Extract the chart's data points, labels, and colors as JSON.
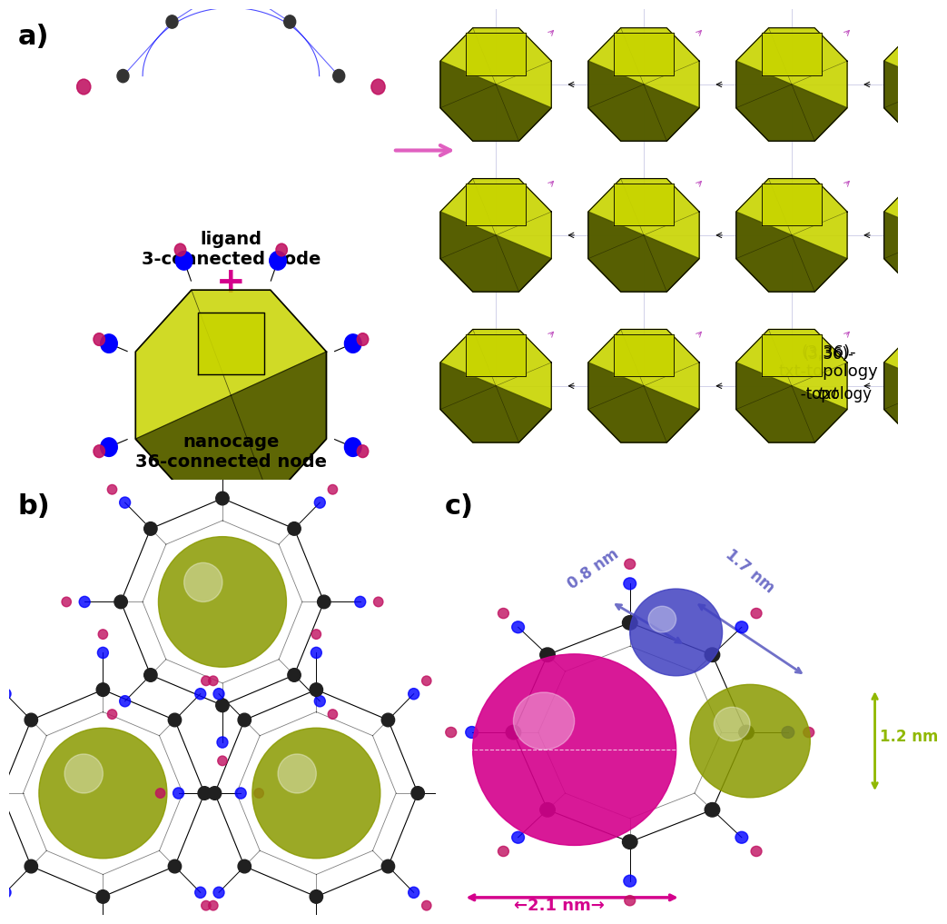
{
  "panel_a_label": "a)",
  "panel_b_label": "b)",
  "panel_c_label": "c)",
  "text_ligand": "ligand\n3-connected node",
  "text_nanocage": "nanocage\n36-connected node",
  "text_topology": "(3,36)-\ntxt-topology",
  "text_plus": "+",
  "text_arrow": "→",
  "annotation_08nm": "0.8 nm",
  "annotation_17nm": "1.7 nm",
  "annotation_12nm": "1.2 nm",
  "annotation_21nm": "←2.1 nm→",
  "color_yellow_green": "#c8d400",
  "color_dark_olive": "#4a5200",
  "color_magenta": "#d4008c",
  "color_blue_sphere": "#4040c0",
  "color_olive_sphere": "#8a9a00",
  "color_purple_text": "#7070c8",
  "color_lime_text": "#90b800",
  "color_magenta_text": "#d4008c",
  "color_black": "#000000",
  "color_white": "#ffffff",
  "color_pink_arrow": "#e060c0",
  "bg_color": "#ffffff",
  "fig_width": 9.79,
  "fig_height": 9.97
}
